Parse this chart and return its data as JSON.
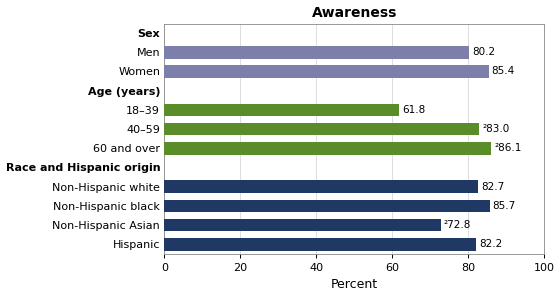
{
  "title": "Awareness",
  "xlabel": "Percent",
  "xlim": [
    0,
    100
  ],
  "xticks": [
    0,
    20,
    40,
    60,
    80,
    100
  ],
  "row_labels": [
    "Hispanic",
    "Non-Hispanic Asian",
    "Non-Hispanic black",
    "Non-Hispanic white",
    "Race and Hispanic origin",
    "60 and over",
    "40–59",
    "18–39",
    "Age (years)",
    "Women",
    "Men",
    "Sex"
  ],
  "row_values": [
    82.2,
    72.8,
    85.7,
    82.7,
    0,
    86.1,
    83.0,
    61.8,
    0,
    85.4,
    80.2,
    0
  ],
  "row_labels_display": [
    "82.2",
    "²72.8",
    "85.7",
    "82.7",
    "",
    "²86.1",
    "²83.0",
    "61.8",
    "",
    "85.4",
    "80.2",
    ""
  ],
  "row_colors": [
    "#1f3864",
    "#1f3864",
    "#1f3864",
    "#1f3864",
    "none",
    "#5b8c2a",
    "#5b8c2a",
    "#5b8c2a",
    "none",
    "#7b7faa",
    "#7b7faa",
    "none"
  ],
  "section_rows": [
    4,
    8,
    11
  ],
  "bar_height": 0.65,
  "label_fontsize": 7.5,
  "tick_fontsize": 8,
  "title_fontsize": 10,
  "axis_label_fontsize": 9,
  "plot_background": "#ffffff",
  "grid_color": "#d0d0d0"
}
